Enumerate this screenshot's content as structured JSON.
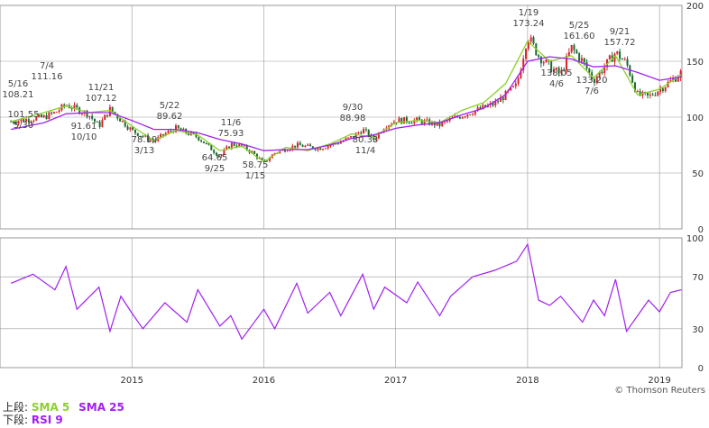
{
  "legend": {
    "upper_label": "上段:",
    "sma5_label": "SMA 5",
    "sma25_label": "SMA 25",
    "lower_label": "下段:",
    "rsi_label": "RSI 9"
  },
  "credit": "© Thomson Reuters",
  "colors": {
    "up_candle": "#d9232b",
    "down_candle": "#1a6b2e",
    "sma5": "#8bd12a",
    "sma25": "#a020f0",
    "rsi": "#a020f0",
    "grid": "#999999",
    "annotation": "#444444"
  },
  "chart_data": [
    {
      "type": "candlestick",
      "panel": "price",
      "ylim": [
        0,
        200
      ],
      "y_ticks": [
        "0",
        "50",
        "100",
        "150",
        "200"
      ],
      "x_ticks": [
        "2015",
        "2016",
        "2017",
        "2018",
        "2019"
      ],
      "grid": true,
      "series": [
        {
          "name": "SMA 5",
          "kind": "line",
          "x": [
            "2014-02",
            "2014-05",
            "2014-07",
            "2014-09",
            "2014-11",
            "2015-01",
            "2015-03",
            "2015-05",
            "2015-07",
            "2015-09",
            "2015-11",
            "2016-01",
            "2016-03",
            "2016-05",
            "2016-07",
            "2016-09",
            "2016-11",
            "2017-01",
            "2017-03",
            "2017-05",
            "2017-07",
            "2017-09",
            "2017-11",
            "2018-01",
            "2018-03",
            "2018-05",
            "2018-07",
            "2018-09",
            "2018-11",
            "2019-01",
            "2019-03"
          ],
          "values": [
            96,
            104,
            110,
            104,
            106,
            92,
            79,
            88,
            84,
            70,
            74,
            60,
            73,
            70,
            76,
            85,
            82,
            95,
            97,
            95,
            106,
            113,
            130,
            168,
            150,
            155,
            135,
            155,
            120,
            125,
            138
          ]
        },
        {
          "name": "SMA 25",
          "kind": "line",
          "x": [
            "2014-02",
            "2014-05",
            "2014-07",
            "2014-09",
            "2014-11",
            "2015-01",
            "2015-03",
            "2015-05",
            "2015-07",
            "2015-09",
            "2015-11",
            "2016-01",
            "2016-03",
            "2016-05",
            "2016-07",
            "2016-09",
            "2016-11",
            "2017-01",
            "2017-03",
            "2017-05",
            "2017-07",
            "2017-09",
            "2017-11",
            "2018-01",
            "2018-03",
            "2018-05",
            "2018-07",
            "2018-09",
            "2018-11",
            "2019-01",
            "2019-03"
          ],
          "values": [
            89,
            95,
            103,
            104,
            104,
            97,
            89,
            89,
            86,
            80,
            76,
            70,
            71,
            71,
            75,
            81,
            84,
            90,
            93,
            95,
            102,
            108,
            120,
            150,
            154,
            152,
            145,
            146,
            140,
            133,
            136
          ]
        }
      ],
      "price_path": {
        "x": [
          "2014-02",
          "2014-05",
          "2014-06",
          "2014-07",
          "2014-09",
          "2014-10",
          "2014-11",
          "2015-01",
          "2015-03",
          "2015-04",
          "2015-05",
          "2015-07",
          "2015-09",
          "2015-10",
          "2015-11",
          "2015-12",
          "2016-01",
          "2016-02",
          "2016-04",
          "2016-06",
          "2016-08",
          "2016-09",
          "2016-10",
          "2016-11",
          "2016-12",
          "2017-01",
          "2017-03",
          "2017-05",
          "2017-06",
          "2017-08",
          "2017-10",
          "2017-12",
          "2018-01",
          "2018-02",
          "2018-03",
          "2018-04",
          "2018-05",
          "2018-06",
          "2018-07",
          "2018-08",
          "2018-09",
          "2018-10",
          "2018-11",
          "2018-12",
          "2019-01",
          "2019-02",
          "2019-03"
        ],
        "values": [
          96,
          100,
          104,
          111,
          103,
          92,
          107,
          88,
          78,
          85,
          90,
          82,
          65,
          76,
          74,
          68,
          59,
          68,
          75,
          72,
          78,
          82,
          89,
          80,
          92,
          97,
          97,
          93,
          98,
          105,
          112,
          128,
          173,
          155,
          145,
          138,
          162,
          150,
          133,
          145,
          158,
          148,
          120,
          118,
          125,
          132,
          140
        ]
      },
      "annotations": [
        {
          "date": "5/16",
          "value": "108.21"
        },
        {
          "date": "7/4",
          "value": "111.16"
        },
        {
          "date": "5/30",
          "value": "101.55"
        },
        {
          "date": "10/10",
          "value": "91.61"
        },
        {
          "date": "11/21",
          "value": "107.12"
        },
        {
          "date": "3/13",
          "value": "78.19"
        },
        {
          "date": "5/22",
          "value": "89.62"
        },
        {
          "date": "9/25",
          "value": "64.65"
        },
        {
          "date": "11/6",
          "value": "75.93"
        },
        {
          "date": "1/15",
          "value": "58.75"
        },
        {
          "date": "9/30",
          "value": "88.98"
        },
        {
          "date": "11/4",
          "value": "80.33"
        },
        {
          "date": "1/19",
          "value": "173.24"
        },
        {
          "date": "4/6",
          "value": "138.05"
        },
        {
          "date": "5/25",
          "value": "161.60"
        },
        {
          "date": "7/6",
          "value": "133.20"
        },
        {
          "date": "9/21",
          "value": "157.72"
        }
      ]
    },
    {
      "type": "line",
      "panel": "rsi",
      "ylim": [
        0,
        100
      ],
      "y_ticks": [
        "0",
        "30",
        "70",
        "100"
      ],
      "x_ticks": [
        "2015",
        "2016",
        "2017",
        "2018",
        "2019"
      ],
      "grid": true,
      "series": [
        {
          "name": "RSI 9",
          "x": [
            "2014-02",
            "2014-04",
            "2014-06",
            "2014-07",
            "2014-08",
            "2014-10",
            "2014-11",
            "2014-12",
            "2015-01",
            "2015-02",
            "2015-04",
            "2015-06",
            "2015-07",
            "2015-09",
            "2015-10",
            "2015-11",
            "2016-01",
            "2016-02",
            "2016-04",
            "2016-05",
            "2016-07",
            "2016-08",
            "2016-10",
            "2016-11",
            "2016-12",
            "2017-02",
            "2017-03",
            "2017-05",
            "2017-06",
            "2017-08",
            "2017-10",
            "2017-12",
            "2018-01",
            "2018-02",
            "2018-03",
            "2018-04",
            "2018-06",
            "2018-07",
            "2018-08",
            "2018-09",
            "2018-10",
            "2018-11",
            "2018-12",
            "2019-01",
            "2019-02",
            "2019-03"
          ],
          "values": [
            65,
            72,
            60,
            78,
            45,
            62,
            28,
            55,
            42,
            30,
            50,
            35,
            60,
            32,
            40,
            22,
            45,
            30,
            65,
            42,
            58,
            40,
            72,
            45,
            62,
            50,
            66,
            40,
            55,
            70,
            75,
            82,
            95,
            52,
            48,
            55,
            35,
            52,
            40,
            68,
            28,
            40,
            52,
            43,
            58,
            60
          ]
        }
      ]
    }
  ]
}
